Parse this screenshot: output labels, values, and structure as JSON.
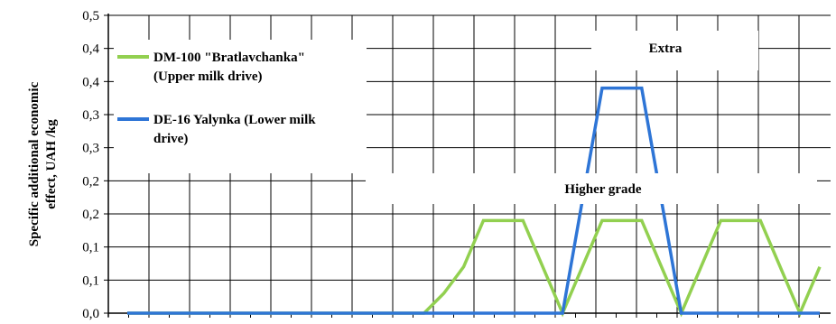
{
  "chart_data": {
    "type": "line",
    "title": "",
    "xlabel": "",
    "ylabel": "Specific additional economic effect, UAH /kg",
    "ylim": [
      0,
      0.45
    ],
    "y_gridlines": [
      0,
      0.05,
      0.1,
      0.15,
      0.2,
      0.25,
      0.3,
      0.35,
      0.4,
      0.45
    ],
    "y_tick_labels": [
      "0,0",
      "0,1",
      "0,1",
      "0,2",
      "0,2",
      "0,3",
      "0,3",
      "0,4",
      "0,4",
      "0,5"
    ],
    "x": [
      0,
      1,
      2,
      3,
      4,
      5,
      6,
      7,
      8,
      9,
      10,
      11,
      12,
      13,
      14,
      15,
      16,
      17,
      18,
      19,
      20,
      21,
      22,
      23,
      24,
      25,
      26,
      27,
      28,
      29,
      30,
      31,
      32,
      33,
      34,
      35
    ],
    "grid": true,
    "legend_position": "top-left",
    "series": [
      {
        "name": "DM-100 \"Bratlavchanka\" (Upper milk drive)",
        "color": "#92d050",
        "values": [
          0,
          0,
          0,
          0,
          0,
          0,
          0,
          0,
          0,
          0,
          0,
          0,
          0,
          0,
          0,
          0,
          0.03,
          0.07,
          0.14,
          0.14,
          0.14,
          0.07,
          0,
          0.07,
          0.14,
          0.14,
          0.14,
          0.07,
          0,
          0.07,
          0.14,
          0.14,
          0.14,
          0.07,
          0,
          0.07
        ]
      },
      {
        "name": "DE-16 Yalynka (Lower milk drive)",
        "color": "#2e75d6",
        "values": [
          0,
          0,
          0,
          0,
          0,
          0,
          0,
          0,
          0,
          0,
          0,
          0,
          0,
          0,
          0,
          0,
          0,
          0,
          0,
          0,
          0,
          0,
          0,
          0.17,
          0.34,
          0.34,
          0.34,
          0.17,
          0,
          0,
          0,
          0,
          0,
          0,
          0,
          0
        ]
      }
    ],
    "annotations": [
      "Extra",
      "Higher grade"
    ]
  }
}
